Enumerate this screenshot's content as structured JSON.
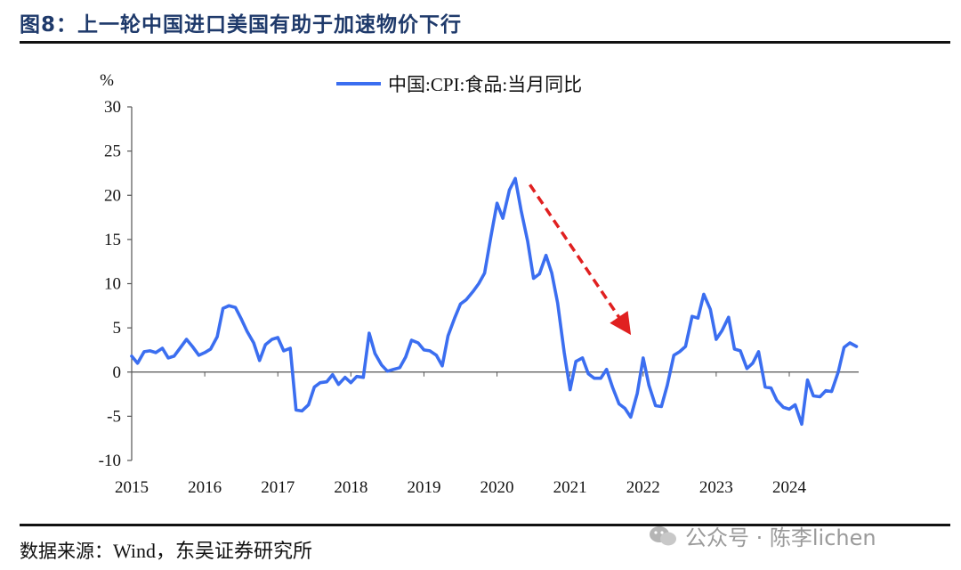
{
  "header": {
    "title": "图8：上一轮中国进口美国有助于加速物价下行"
  },
  "source": {
    "label": "数据来源：",
    "text": "Wind，东吴证券研究所"
  },
  "watermark": {
    "text": "公众号 · 陈李lichen"
  },
  "colors": {
    "series": "#3b6ef0",
    "arrow": "#e02020",
    "axis": "#555555"
  },
  "chart_data": {
    "type": "line",
    "title": "",
    "xlabel": "",
    "ylabel": "%",
    "ylim": [
      -10,
      30
    ],
    "yticks": [
      -10,
      -5,
      0,
      5,
      10,
      15,
      20,
      25,
      30
    ],
    "xlim": [
      2015.0,
      2024.95
    ],
    "xticks": [
      "2015",
      "2016",
      "2017",
      "2018",
      "2019",
      "2020",
      "2021",
      "2022",
      "2023",
      "2024"
    ],
    "legend_position": "top-center",
    "series": [
      {
        "name": "中国:CPI:食品:当月同比",
        "points": [
          [
            2015.0,
            1.8
          ],
          [
            2015.08,
            1.0
          ],
          [
            2015.17,
            2.3
          ],
          [
            2015.25,
            2.4
          ],
          [
            2015.33,
            2.2
          ],
          [
            2015.42,
            2.7
          ],
          [
            2015.5,
            1.6
          ],
          [
            2015.58,
            1.8
          ],
          [
            2015.67,
            2.8
          ],
          [
            2015.75,
            3.7
          ],
          [
            2015.83,
            2.9
          ],
          [
            2015.92,
            1.9
          ],
          [
            2016.0,
            2.2
          ],
          [
            2016.08,
            2.6
          ],
          [
            2016.17,
            4.0
          ],
          [
            2016.25,
            7.2
          ],
          [
            2016.33,
            7.5
          ],
          [
            2016.42,
            7.3
          ],
          [
            2016.5,
            6.0
          ],
          [
            2016.58,
            4.6
          ],
          [
            2016.67,
            3.3
          ],
          [
            2016.75,
            1.3
          ],
          [
            2016.83,
            3.1
          ],
          [
            2016.92,
            3.7
          ],
          [
            2017.0,
            3.9
          ],
          [
            2017.08,
            2.4
          ],
          [
            2017.17,
            2.7
          ],
          [
            2017.25,
            -4.3
          ],
          [
            2017.33,
            -4.4
          ],
          [
            2017.42,
            -3.7
          ],
          [
            2017.5,
            -1.7
          ],
          [
            2017.58,
            -1.2
          ],
          [
            2017.67,
            -1.1
          ],
          [
            2017.75,
            -0.3
          ],
          [
            2017.83,
            -1.4
          ],
          [
            2017.92,
            -0.6
          ],
          [
            2018.0,
            -1.2
          ],
          [
            2018.08,
            -0.5
          ],
          [
            2018.17,
            -0.6
          ],
          [
            2018.25,
            4.4
          ],
          [
            2018.33,
            2.1
          ],
          [
            2018.42,
            0.8
          ],
          [
            2018.5,
            0.1
          ],
          [
            2018.58,
            0.3
          ],
          [
            2018.67,
            0.5
          ],
          [
            2018.75,
            1.7
          ],
          [
            2018.83,
            3.6
          ],
          [
            2018.92,
            3.3
          ],
          [
            2019.0,
            2.5
          ],
          [
            2019.08,
            2.4
          ],
          [
            2019.17,
            1.9
          ],
          [
            2019.25,
            0.7
          ],
          [
            2019.33,
            4.1
          ],
          [
            2019.42,
            6.1
          ],
          [
            2019.5,
            7.7
          ],
          [
            2019.58,
            8.2
          ],
          [
            2019.67,
            9.1
          ],
          [
            2019.75,
            10.0
          ],
          [
            2019.83,
            11.2
          ],
          [
            2019.92,
            15.5
          ],
          [
            2020.0,
            19.1
          ],
          [
            2020.08,
            17.4
          ],
          [
            2020.17,
            20.6
          ],
          [
            2020.25,
            21.9
          ],
          [
            2020.33,
            18.3
          ],
          [
            2020.42,
            14.8
          ],
          [
            2020.5,
            10.6
          ],
          [
            2020.58,
            11.1
          ],
          [
            2020.67,
            13.2
          ],
          [
            2020.75,
            11.2
          ],
          [
            2020.83,
            7.8
          ],
          [
            2020.92,
            2.2
          ],
          [
            2021.0,
            -2.0
          ],
          [
            2021.08,
            1.2
          ],
          [
            2021.17,
            1.6
          ],
          [
            2021.25,
            -0.2
          ],
          [
            2021.33,
            -0.7
          ],
          [
            2021.42,
            -0.7
          ],
          [
            2021.5,
            0.3
          ],
          [
            2021.58,
            -1.7
          ],
          [
            2021.67,
            -3.6
          ],
          [
            2021.75,
            -4.1
          ],
          [
            2021.83,
            -5.1
          ],
          [
            2021.92,
            -2.4
          ],
          [
            2022.0,
            1.6
          ],
          [
            2022.08,
            -1.5
          ],
          [
            2022.17,
            -3.8
          ],
          [
            2022.25,
            -3.9
          ],
          [
            2022.33,
            -1.5
          ],
          [
            2022.42,
            1.9
          ],
          [
            2022.5,
            2.3
          ],
          [
            2022.58,
            2.9
          ],
          [
            2022.67,
            6.3
          ],
          [
            2022.75,
            6.1
          ],
          [
            2022.83,
            8.8
          ],
          [
            2022.92,
            7.1
          ],
          [
            2023.0,
            3.7
          ],
          [
            2023.08,
            4.7
          ],
          [
            2023.17,
            6.2
          ],
          [
            2023.25,
            2.6
          ],
          [
            2023.33,
            2.4
          ],
          [
            2023.42,
            0.4
          ],
          [
            2023.5,
            1.0
          ],
          [
            2023.58,
            2.3
          ],
          [
            2023.67,
            -1.7
          ],
          [
            2023.75,
            -1.8
          ],
          [
            2023.83,
            -3.2
          ],
          [
            2023.92,
            -4.0
          ],
          [
            2024.0,
            -4.2
          ],
          [
            2024.08,
            -3.7
          ],
          [
            2024.17,
            -5.9
          ],
          [
            2024.25,
            -0.9
          ],
          [
            2024.33,
            -2.7
          ],
          [
            2024.42,
            -2.8
          ],
          [
            2024.5,
            -2.1
          ],
          [
            2024.58,
            -2.2
          ],
          [
            2024.67,
            0.0
          ],
          [
            2024.75,
            2.8
          ],
          [
            2024.83,
            3.3
          ],
          [
            2024.92,
            2.9
          ]
        ]
      }
    ],
    "annotations": [
      {
        "type": "arrow",
        "style": "dashed",
        "from": [
          2020.45,
          21.2
        ],
        "to": [
          2021.8,
          4.6
        ]
      }
    ]
  }
}
